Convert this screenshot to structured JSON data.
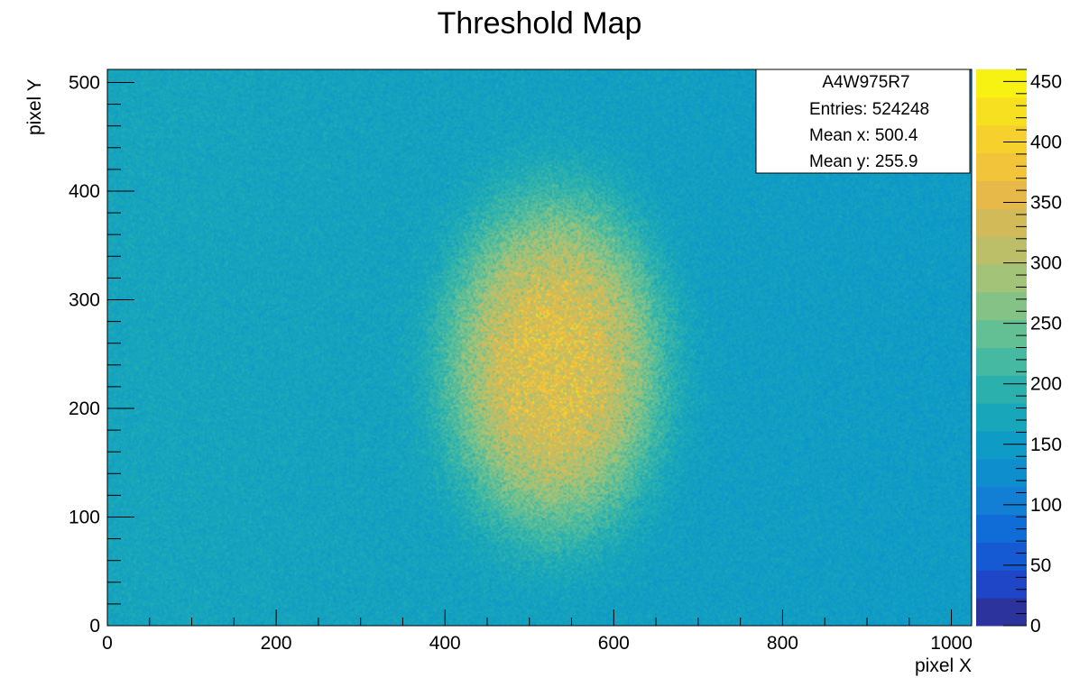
{
  "chart_data": {
    "type": "heatmap",
    "title": "Threshold Map",
    "xlabel": "pixel X",
    "ylabel": "pixel Y",
    "xlim": [
      0,
      1024
    ],
    "ylim": [
      0,
      512
    ],
    "zlim": [
      0,
      460
    ],
    "x_ticks": [
      0,
      200,
      400,
      600,
      800,
      1000
    ],
    "y_ticks": [
      0,
      100,
      200,
      300,
      400,
      500
    ],
    "z_ticks": [
      0,
      50,
      100,
      150,
      200,
      250,
      300,
      350,
      400,
      450
    ],
    "x_tick_labels": [
      "0",
      "200",
      "400",
      "600",
      "800",
      "1000"
    ],
    "y_tick_labels": [
      "0",
      "100",
      "200",
      "300",
      "400",
      "500"
    ],
    "z_tick_labels": [
      "0",
      "50",
      "100",
      "150",
      "200",
      "250",
      "300",
      "350",
      "400",
      "450"
    ],
    "background_level": 170,
    "hotspot": {
      "center_x": 530,
      "center_y": 240,
      "radius_x": 125,
      "radius_y": 150,
      "peak_level": 360
    },
    "colormap": [
      "#352a87",
      "#1f47c9",
      "#0f66d9",
      "#1482d4",
      "#0b98c9",
      "#1aa8b9",
      "#3db8a5",
      "#6cc191",
      "#9fc47b",
      "#c5bd63",
      "#e6b84a",
      "#f6c935",
      "#f7e020",
      "#f9fb0e"
    ],
    "grid": false,
    "legend": "top-right",
    "stats_box": {
      "name": "A4W975R7",
      "entries": "Entries: 524248",
      "mean_x": "Mean x: 500.4",
      "mean_y": "Mean y: 255.9"
    }
  }
}
